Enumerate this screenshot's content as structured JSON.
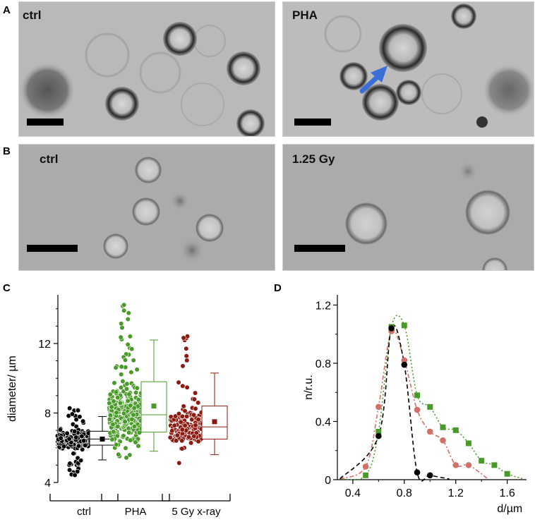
{
  "panels": {
    "a": {
      "letter": "A",
      "left_label": "ctrl",
      "right_label": "PHA"
    },
    "b": {
      "letter": "B",
      "left_label": "ctrl",
      "right_label": "1.25 Gy"
    },
    "c": {
      "letter": "C"
    },
    "d": {
      "letter": "D"
    }
  },
  "colors": {
    "ctrl": "#000000",
    "pha": "#4a9a2a",
    "xray": "#8b1a10",
    "xray_light": "#d07068",
    "arrow": "#3a6fd8"
  },
  "chart_data": [
    {
      "type": "box",
      "ylabel": "diameter/ µm",
      "ylim": [
        4,
        14.8
      ],
      "yticks": [
        4,
        8,
        12
      ],
      "groups": [
        {
          "name": "ctrl",
          "color": "#000000",
          "box": {
            "min": 5.3,
            "q1": 6.15,
            "median": 6.5,
            "q3": 6.95,
            "max": 7.8,
            "mean": 6.5
          },
          "points_range": [
            4.4,
            8.3
          ]
        },
        {
          "name": "PHA",
          "color": "#4a9a2a",
          "box": {
            "min": 5.8,
            "q1": 6.9,
            "median": 7.9,
            "q3": 9.8,
            "max": 12.2,
            "mean": 8.4
          },
          "points_range": [
            5.4,
            14.3
          ]
        },
        {
          "name": "5 Gy x-ray",
          "color": "#8b1a10",
          "box": {
            "min": 5.6,
            "q1": 6.5,
            "median": 7.2,
            "q3": 8.4,
            "max": 10.3,
            "mean": 7.5
          },
          "points_range": [
            4.2,
            12.5
          ]
        }
      ]
    },
    {
      "type": "scatter",
      "xlabel": "d/µm",
      "ylabel": "n/r.u.",
      "xlim": [
        0.28,
        1.75
      ],
      "ylim": [
        0,
        1.27
      ],
      "xticks": [
        0.4,
        0.8,
        1.2,
        1.6
      ],
      "yticks": [
        0,
        0.4,
        0.8,
        1.2
      ],
      "series": [
        {
          "color": "#4a9a2a",
          "marker": "square",
          "line": "dotted",
          "x": [
            0.5,
            0.6,
            0.7,
            0.8,
            0.9,
            1.0,
            1.1,
            1.2,
            1.3,
            1.4,
            1.5,
            1.6
          ],
          "y": [
            0.03,
            0.33,
            1.05,
            1.06,
            0.58,
            0.5,
            0.36,
            0.34,
            0.25,
            0.13,
            0.1,
            0.04
          ]
        },
        {
          "color": "#d07068",
          "marker": "circle",
          "line": "dashdot",
          "x": [
            0.5,
            0.6,
            0.7,
            0.8,
            0.9,
            1.0,
            1.1,
            1.2,
            1.3
          ],
          "y": [
            0.09,
            0.5,
            1.02,
            0.82,
            0.48,
            0.33,
            0.27,
            0.1,
            0.1
          ]
        },
        {
          "color": "#000000",
          "marker": "circle",
          "line": "dashed",
          "x": [
            0.6,
            0.7,
            0.8,
            0.9,
            1.0
          ],
          "y": [
            0.3,
            1.04,
            0.79,
            0.05,
            0.03
          ]
        }
      ]
    }
  ]
}
